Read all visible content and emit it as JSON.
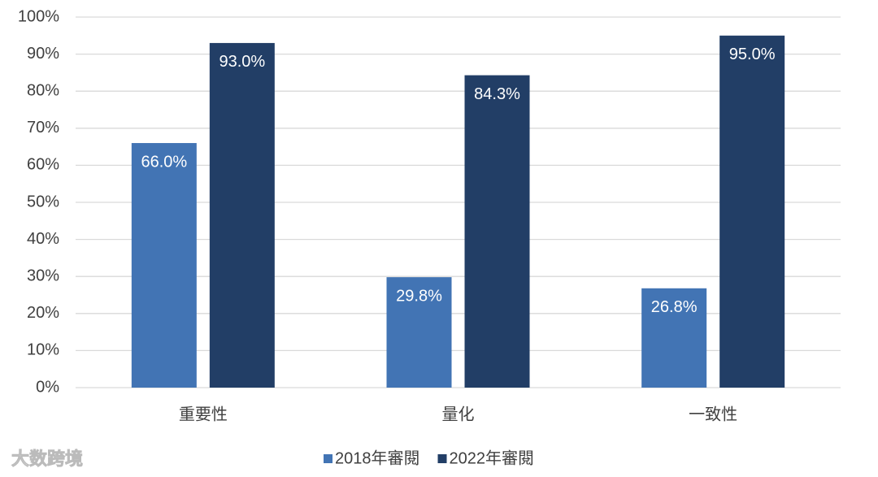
{
  "chart_data": {
    "type": "bar",
    "categories": [
      "重要性",
      "量化",
      "一致性"
    ],
    "series": [
      {
        "name": "2018年審閱",
        "color": "#4274b4",
        "values": [
          66.0,
          29.8,
          26.8
        ],
        "value_labels": [
          "66.0%",
          "29.8%",
          "26.8%"
        ]
      },
      {
        "name": "2022年審閱",
        "color": "#223e66",
        "values": [
          93.0,
          84.3,
          95.0
        ],
        "value_labels": [
          "93.0%",
          "84.3%",
          "95.0%"
        ]
      }
    ],
    "ylim": [
      0,
      100
    ],
    "yticks": [
      {
        "value": 0,
        "label": "0%"
      },
      {
        "value": 10,
        "label": "10%"
      },
      {
        "value": 20,
        "label": "20%"
      },
      {
        "value": 30,
        "label": "30%"
      },
      {
        "value": 40,
        "label": "40%"
      },
      {
        "value": 50,
        "label": "50%"
      },
      {
        "value": 60,
        "label": "60%"
      },
      {
        "value": 70,
        "label": "70%"
      },
      {
        "value": 80,
        "label": "80%"
      },
      {
        "value": 90,
        "label": "90%"
      },
      {
        "value": 100,
        "label": "100%"
      }
    ],
    "grid": true,
    "legend": "bottom"
  },
  "watermark": "大数跨境"
}
